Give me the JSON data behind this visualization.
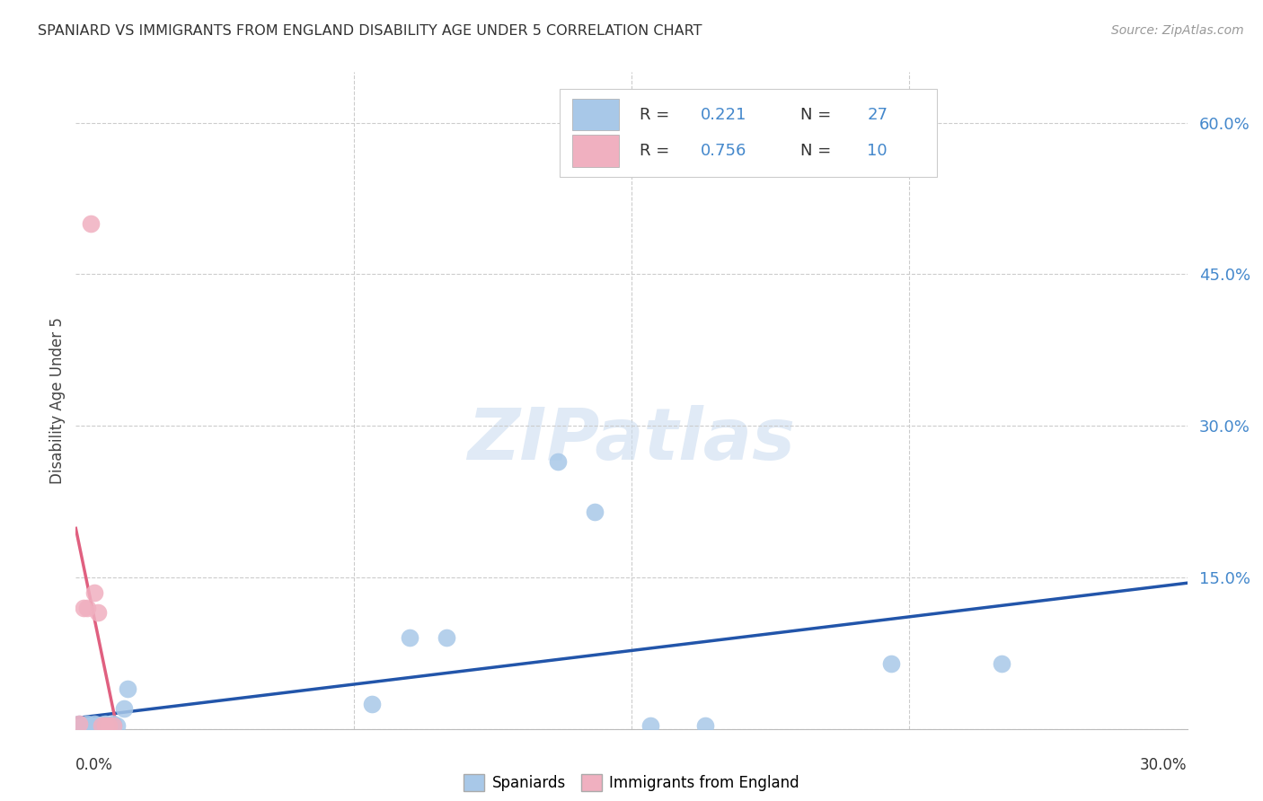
{
  "title": "SPANIARD VS IMMIGRANTS FROM ENGLAND DISABILITY AGE UNDER 5 CORRELATION CHART",
  "source": "Source: ZipAtlas.com",
  "ylabel": "Disability Age Under 5",
  "legend_r1_val": "0.221",
  "legend_n1_val": "27",
  "legend_r2_val": "0.756",
  "legend_n2_val": "10",
  "spaniards_x": [
    0.001,
    0.002,
    0.003,
    0.003,
    0.004,
    0.005,
    0.005,
    0.006,
    0.007,
    0.008,
    0.008,
    0.009,
    0.009,
    0.01,
    0.01,
    0.011,
    0.013,
    0.014,
    0.08,
    0.09,
    0.1,
    0.13,
    0.14,
    0.155,
    0.17,
    0.22,
    0.25
  ],
  "spaniards_y": [
    0.005,
    0.003,
    0.005,
    0.003,
    0.003,
    0.003,
    0.005,
    0.003,
    0.004,
    0.003,
    0.005,
    0.003,
    0.004,
    0.003,
    0.005,
    0.003,
    0.02,
    0.04,
    0.025,
    0.09,
    0.09,
    0.265,
    0.215,
    0.003,
    0.003,
    0.065,
    0.065
  ],
  "england_x": [
    0.001,
    0.002,
    0.003,
    0.004,
    0.005,
    0.006,
    0.007,
    0.008,
    0.009,
    0.01
  ],
  "england_y": [
    0.005,
    0.12,
    0.12,
    0.5,
    0.135,
    0.115,
    0.003,
    0.003,
    0.003,
    0.003
  ],
  "color_spaniards": "#a8c8e8",
  "color_england": "#f0b0c0",
  "color_reg_spaniards": "#2255aa",
  "color_reg_england": "#e06080",
  "xlim": [
    0.0,
    0.3
  ],
  "ylim": [
    0.0,
    0.65
  ],
  "ytick_vals": [
    0.0,
    0.15,
    0.3,
    0.45,
    0.6
  ],
  "ytick_labels": [
    "",
    "15.0%",
    "30.0%",
    "45.0%",
    "60.0%"
  ],
  "background_color": "#ffffff",
  "grid_color": "#cccccc",
  "legend_label_1": "Spaniards",
  "legend_label_2": "Immigrants from England"
}
